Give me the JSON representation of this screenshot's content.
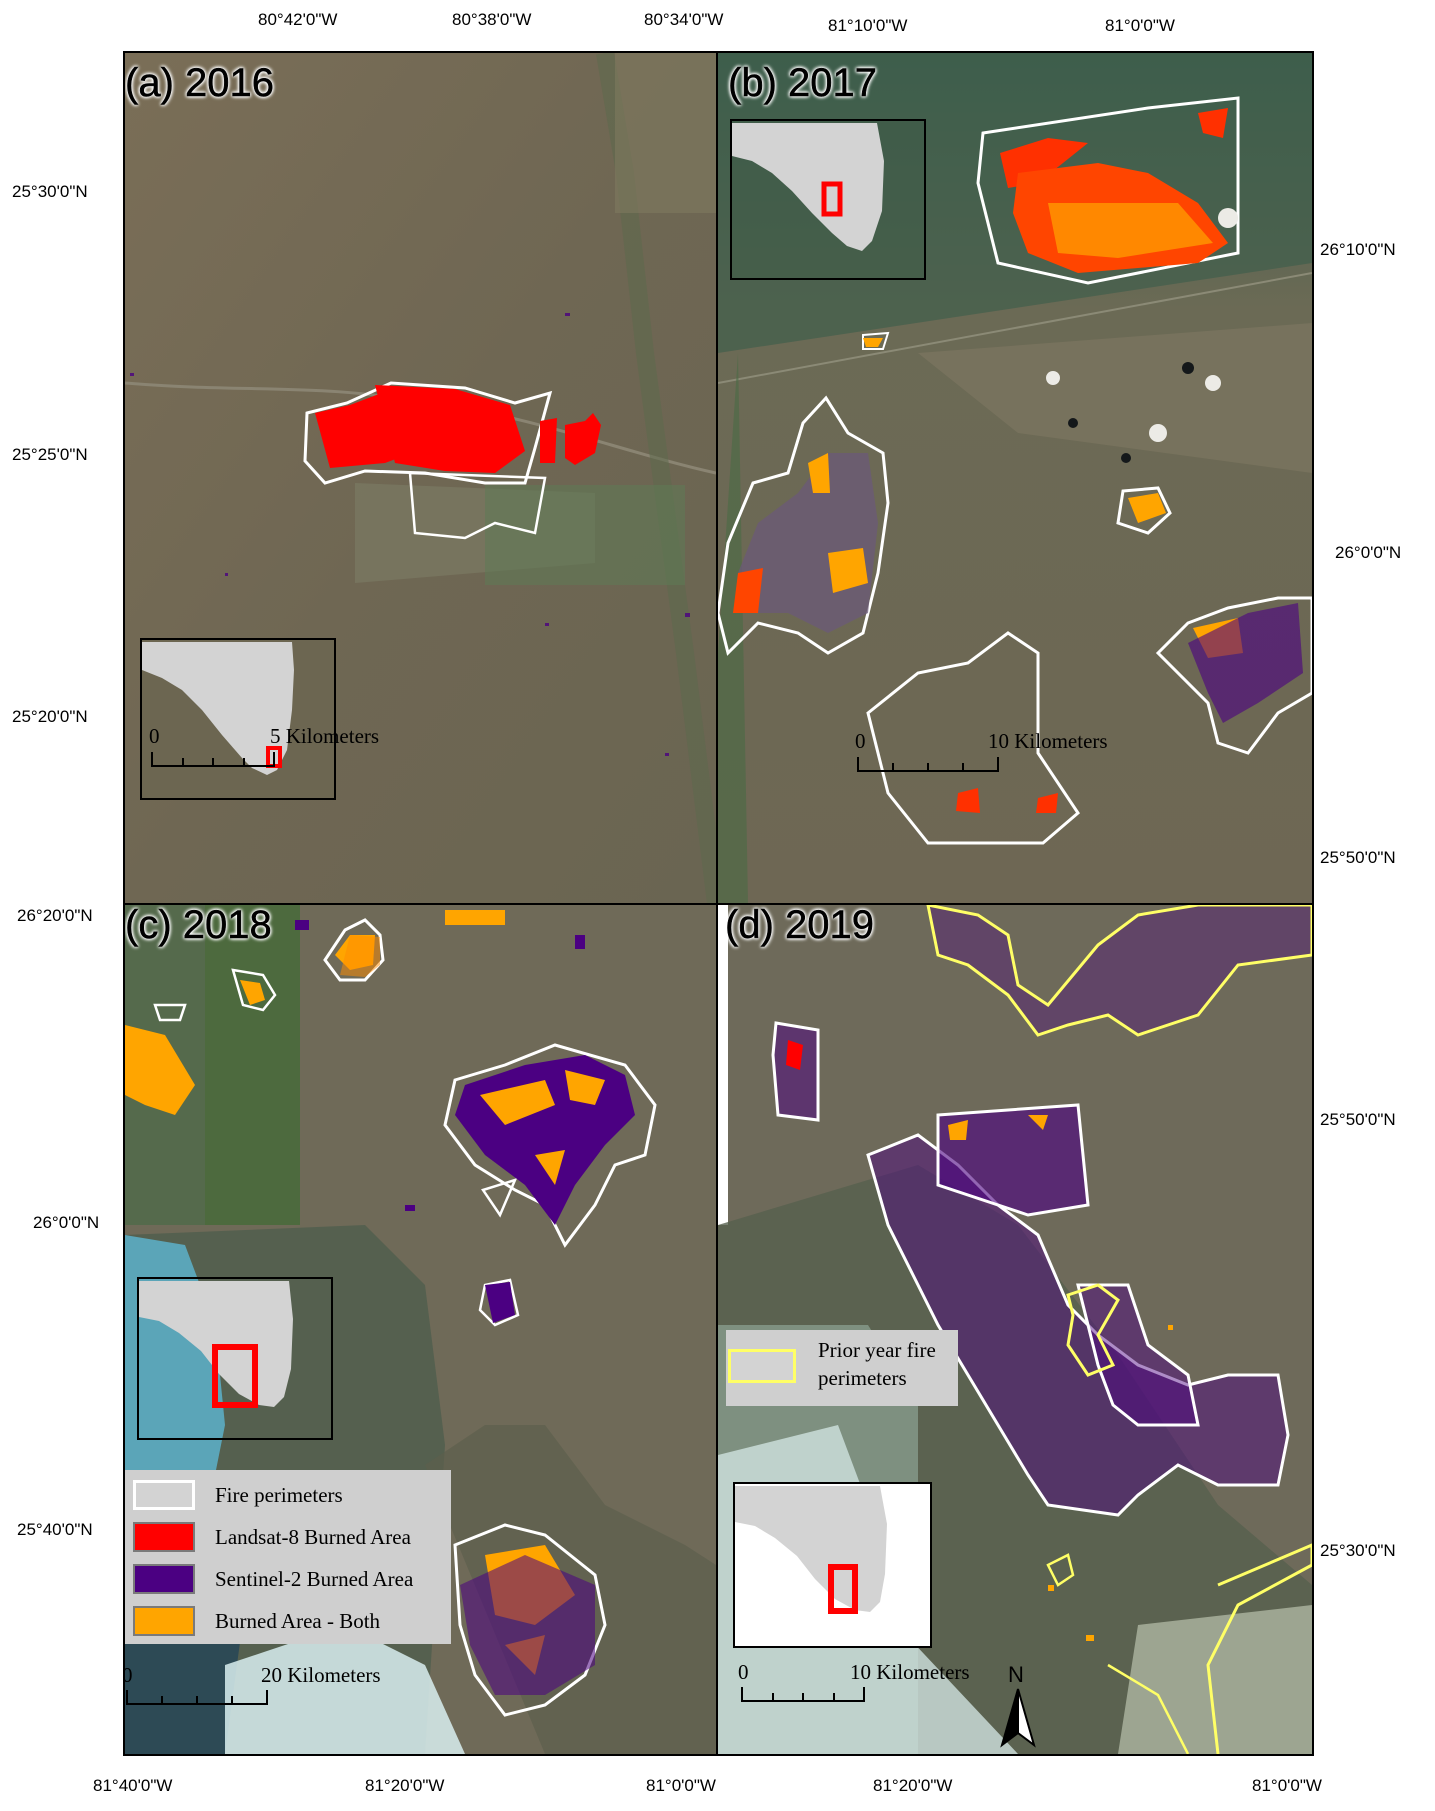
{
  "panels": {
    "a": {
      "label": "(a) 2016",
      "scale_zero": "0",
      "scale_label": "5 Kilometers"
    },
    "b": {
      "label": "(b) 2017",
      "scale_zero": "0",
      "scale_label": "10 Kilometers"
    },
    "c": {
      "label": "(c) 2018",
      "scale_zero": "0",
      "scale_label": "20 Kilometers"
    },
    "d": {
      "label": "(d) 2019",
      "scale_zero": "0",
      "scale_label": "10 Kilometers"
    }
  },
  "ticks": {
    "top_a": [
      "80°42'0\"W",
      "80°38'0\"W",
      "80°34'0\"W"
    ],
    "top_b": [
      "81°10'0\"W",
      "81°0'0\"W"
    ],
    "left_a": [
      "25°30'0\"N",
      "25°25'0\"N",
      "25°20'0\"N"
    ],
    "left_c": [
      "26°20'0\"N",
      "26°0'0\"N",
      "25°40'0\"N"
    ],
    "right_b": [
      "26°10'0\"N",
      "26°0'0\"N",
      "25°50'0\"N"
    ],
    "right_d": [
      "25°50'0\"N",
      "25°30'0\"N"
    ],
    "bottom_c": [
      "81°40'0\"W",
      "81°20'0\"W",
      "81°0'0\"W"
    ],
    "bottom_d": [
      "81°20'0\"W",
      "81°0'0\"W"
    ]
  },
  "legend_main": {
    "items": [
      {
        "label": "Fire perimeters",
        "fill": "#d3d3d3",
        "border": "#ffffff"
      },
      {
        "label": "Landsat-8 Burned Area",
        "fill": "#ff0000",
        "border": "#7a7a7a"
      },
      {
        "label": "Sentinel-2 Burned Area",
        "fill": "#4b0082",
        "border": "#7a7a7a"
      },
      {
        "label": "Burned Area - Both",
        "fill": "#ffa500",
        "border": "#7a7a7a"
      }
    ]
  },
  "legend_prior": {
    "label": "Prior year fire perimeters",
    "line1": "Prior year fire",
    "line2": "perimeters",
    "border": "#ffff66"
  },
  "north_arrow": "N",
  "colors": {
    "landsat": "#ff0000",
    "sentinel": "#4b0082",
    "both": "#ffa500",
    "perimeter": "#ffffff",
    "prior_perimeter": "#ffff66",
    "inset_land": "#d3d3d3",
    "inset_box": "#ff0000"
  }
}
